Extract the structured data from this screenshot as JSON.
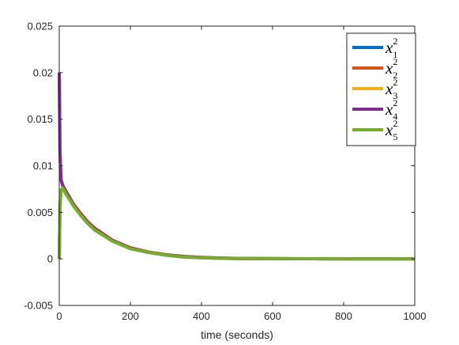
{
  "chart_data": {
    "type": "line",
    "title": "",
    "xlabel": "time (seconds)",
    "ylabel": "",
    "xlim": [
      0,
      1000
    ],
    "ylim": [
      -0.005,
      0.025
    ],
    "x_ticks": [
      "0",
      "200",
      "400",
      "600",
      "800",
      "1000"
    ],
    "y_ticks": [
      "-0.005",
      "0",
      "0.005",
      "0.01",
      "0.015",
      "0.02",
      "0.025"
    ],
    "grid": false,
    "legend_position": "top-right",
    "x": [
      0,
      2,
      5,
      10,
      20,
      40,
      60,
      80,
      100,
      150,
      200,
      250,
      300,
      350,
      400,
      450,
      500,
      600,
      700,
      800,
      900,
      1000
    ],
    "series": [
      {
        "name": "x_1^2",
        "color": "#0072BD",
        "values": [
          0.0,
          0.0055,
          0.0074,
          0.0076,
          0.0069,
          0.0057,
          0.0047,
          0.0038,
          0.0031,
          0.0019,
          0.0011,
          0.0007,
          0.0004,
          0.0002,
          0.00012,
          7e-05,
          4e-05,
          2e-05,
          1e-05,
          0.0,
          0.0,
          0.0
        ]
      },
      {
        "name": "x_2^2",
        "color": "#D95319",
        "values": [
          0.02,
          0.0115,
          0.0085,
          0.0079,
          0.0072,
          0.0059,
          0.0049,
          0.004,
          0.0033,
          0.002,
          0.0012,
          0.00075,
          0.00045,
          0.00027,
          0.00016,
          0.0001,
          6e-05,
          2e-05,
          1e-05,
          0.0,
          0.0,
          0.0
        ]
      },
      {
        "name": "x_3^2",
        "color": "#EDB120",
        "values": [
          0.0,
          0.0055,
          0.0074,
          0.0076,
          0.0069,
          0.0057,
          0.0047,
          0.0038,
          0.0031,
          0.0019,
          0.0011,
          0.0007,
          0.0004,
          0.0002,
          0.00012,
          7e-05,
          4e-05,
          2e-05,
          1e-05,
          0.0,
          0.0,
          0.0
        ]
      },
      {
        "name": "x_4^2",
        "color": "#7E2F8E",
        "values": [
          0.02,
          0.0115,
          0.0085,
          0.0078,
          0.0071,
          0.0058,
          0.0048,
          0.0039,
          0.0032,
          0.00195,
          0.00115,
          0.0007,
          0.00042,
          0.00025,
          0.00015,
          9e-05,
          5e-05,
          2e-05,
          1e-05,
          0.0,
          0.0,
          0.0
        ]
      },
      {
        "name": "x_5^2",
        "color": "#77AC30",
        "values": [
          0.0,
          0.0055,
          0.0074,
          0.0076,
          0.0069,
          0.0057,
          0.0047,
          0.0038,
          0.0031,
          0.0019,
          0.0011,
          0.0007,
          0.0004,
          0.0002,
          0.00012,
          7e-05,
          4e-05,
          2e-05,
          1e-05,
          0.0,
          0.0,
          0.0
        ]
      }
    ],
    "legend": {
      "entries": [
        {
          "base": "x",
          "sub": "1",
          "sup": "2"
        },
        {
          "base": "x",
          "sub": "2",
          "sup": "2"
        },
        {
          "base": "x",
          "sub": "3",
          "sup": "2"
        },
        {
          "base": "x",
          "sub": "4",
          "sup": "2"
        },
        {
          "base": "x",
          "sub": "5",
          "sup": "2"
        }
      ]
    }
  }
}
